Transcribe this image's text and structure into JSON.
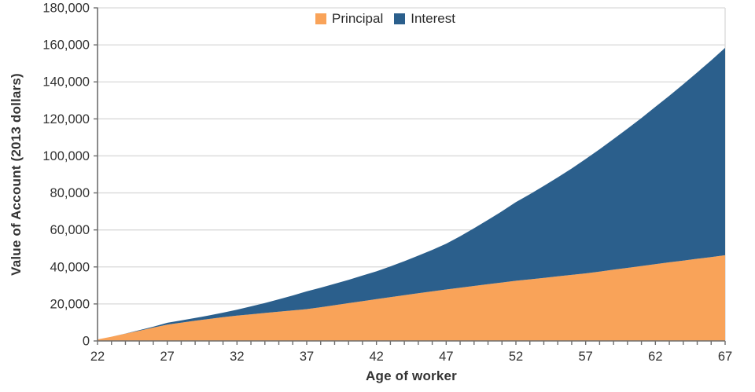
{
  "chart_data": {
    "type": "area",
    "stacked": true,
    "title": "",
    "xlabel": "Age of worker",
    "ylabel": "Value of Account (2013 dollars)",
    "x": [
      22,
      23,
      24,
      25,
      26,
      27,
      28,
      29,
      30,
      31,
      32,
      33,
      34,
      35,
      36,
      37,
      38,
      39,
      40,
      41,
      42,
      43,
      44,
      45,
      46,
      47,
      48,
      49,
      50,
      51,
      52,
      53,
      54,
      55,
      56,
      57,
      58,
      59,
      60,
      61,
      62,
      63,
      64,
      65,
      66,
      67
    ],
    "series": [
      {
        "name": "Principal",
        "color": "#F9A359",
        "values": [
          800,
          2300,
          3900,
          5500,
          7200,
          8800,
          9900,
          10900,
          11900,
          12800,
          13700,
          14400,
          15100,
          15800,
          16500,
          17200,
          18200,
          19300,
          20400,
          21500,
          22600,
          23700,
          24700,
          25800,
          26800,
          27800,
          28800,
          29700,
          30700,
          31600,
          32500,
          33300,
          34100,
          34900,
          35700,
          36500,
          37500,
          38500,
          39500,
          40500,
          41500,
          42500,
          43400,
          44400,
          45300,
          46300
        ]
      },
      {
        "name": "Interest",
        "color": "#2B5F8C",
        "values": [
          0,
          0,
          100,
          300,
          500,
          1000,
          1200,
          1500,
          1900,
          2500,
          3200,
          4300,
          5400,
          6700,
          8100,
          9600,
          10600,
          11600,
          12600,
          13800,
          15000,
          16600,
          18400,
          20300,
          22400,
          24700,
          27800,
          31200,
          34700,
          38500,
          42500,
          46000,
          49700,
          53500,
          57500,
          61800,
          66100,
          70600,
          75200,
          80000,
          85000,
          90000,
          95300,
          100700,
          106300,
          112100
        ]
      }
    ],
    "xlim": [
      22,
      67
    ],
    "ylim": [
      0,
      180000
    ],
    "x_major_ticks": [
      22,
      27,
      32,
      37,
      42,
      47,
      52,
      57,
      62,
      67
    ],
    "x_minor_tick_step": 1,
    "y_ticks": [
      0,
      20000,
      40000,
      60000,
      80000,
      100000,
      120000,
      140000,
      160000,
      180000
    ],
    "y_tick_labels": [
      "0",
      "20,000",
      "40,000",
      "60,000",
      "80,000",
      "100,000",
      "120,000",
      "140,000",
      "160,000",
      "180,000"
    ],
    "grid": "horizontal",
    "legend_position": "top-center",
    "gridline_color": "#D9D9D9",
    "axis_color": "#6E6E6E",
    "text_color": "#333333"
  }
}
